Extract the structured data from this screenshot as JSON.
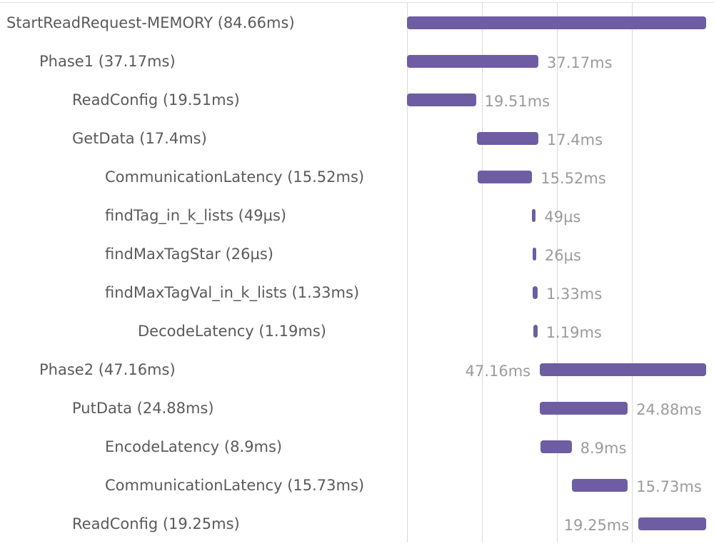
{
  "trace": {
    "total_ms": 84.66,
    "bar_color": "#6e5da3",
    "spans": [
      {
        "name": "StartReadRequest-MEMORY",
        "label": "StartReadRequest-MEMORY (84.66ms)",
        "duration_label": "",
        "depth": 0,
        "start_ms": 0,
        "duration_ms": 84.66
      },
      {
        "name": "Phase1",
        "label": "Phase1 (37.17ms)",
        "duration_label": "37.17ms",
        "depth": 1,
        "start_ms": 0,
        "duration_ms": 37.17
      },
      {
        "name": "ReadConfig",
        "label": "ReadConfig (19.51ms)",
        "duration_label": "19.51ms",
        "depth": 2,
        "start_ms": 0,
        "duration_ms": 19.51
      },
      {
        "name": "GetData",
        "label": "GetData (17.4ms)",
        "duration_label": "17.4ms",
        "depth": 2,
        "start_ms": 19.77,
        "duration_ms": 17.4
      },
      {
        "name": "CommunicationLatency",
        "label": "CommunicationLatency (15.52ms)",
        "duration_label": "15.52ms",
        "depth": 3,
        "start_ms": 19.9,
        "duration_ms": 15.52
      },
      {
        "name": "findTag_in_k_lists",
        "label": "findTag_in_k_lists (49µs)",
        "duration_label": "49µs",
        "depth": 3,
        "start_ms": 35.45,
        "duration_ms": 0.049
      },
      {
        "name": "findMaxTagStar",
        "label": "findMaxTagStar (26µs)",
        "duration_label": "26µs",
        "depth": 3,
        "start_ms": 35.55,
        "duration_ms": 0.026
      },
      {
        "name": "findMaxTagVal_in_k_lists",
        "label": "findMaxTagVal_in_k_lists (1.33ms)",
        "duration_label": "1.33ms",
        "depth": 3,
        "start_ms": 35.65,
        "duration_ms": 1.33
      },
      {
        "name": "DecodeLatency",
        "label": "DecodeLatency (1.19ms)",
        "duration_label": "1.19ms",
        "depth": 4,
        "start_ms": 35.72,
        "duration_ms": 1.19
      },
      {
        "name": "Phase2",
        "label": "Phase2 (47.16ms)",
        "duration_label": "47.16ms",
        "depth": 1,
        "start_ms": 37.5,
        "duration_ms": 47.16
      },
      {
        "name": "PutData",
        "label": "PutData (24.88ms)",
        "duration_label": "24.88ms",
        "depth": 2,
        "start_ms": 37.6,
        "duration_ms": 24.88
      },
      {
        "name": "EncodeLatency",
        "label": "EncodeLatency (8.9ms)",
        "duration_label": "8.9ms",
        "depth": 3,
        "start_ms": 37.7,
        "duration_ms": 8.9
      },
      {
        "name": "CommunicationLatency",
        "label": "CommunicationLatency (15.73ms)",
        "duration_label": "15.73ms",
        "depth": 3,
        "start_ms": 46.75,
        "duration_ms": 15.73
      },
      {
        "name": "ReadConfig",
        "label": "ReadConfig (19.25ms)",
        "duration_label": "19.25ms",
        "depth": 2,
        "start_ms": 65.41,
        "duration_ms": 19.25
      }
    ]
  }
}
